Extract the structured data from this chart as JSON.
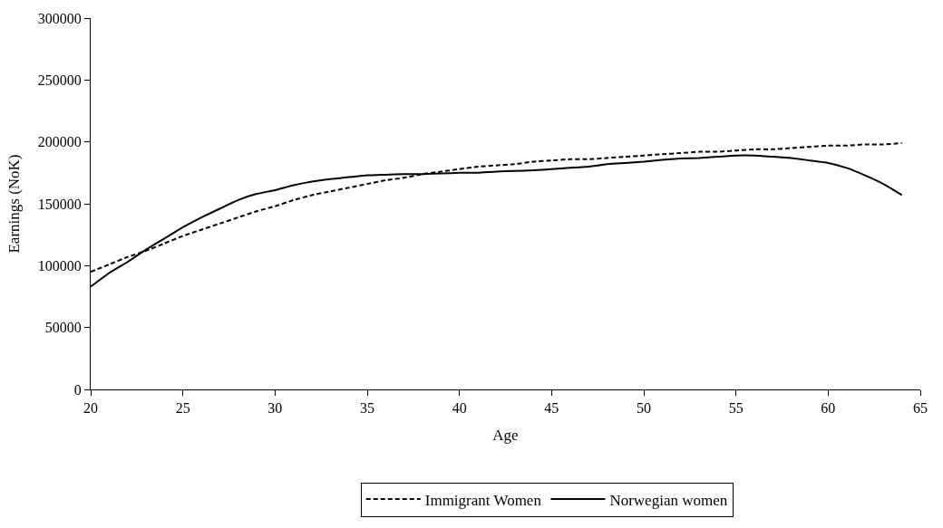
{
  "chart_data": {
    "type": "line",
    "xlabel": "Age",
    "ylabel": "Earnings (NoK)",
    "x": [
      20,
      21,
      22,
      23,
      24,
      25,
      26,
      27,
      28,
      29,
      30,
      31,
      32,
      33,
      34,
      35,
      36,
      37,
      38,
      39,
      40,
      41,
      42,
      43,
      44,
      45,
      46,
      47,
      48,
      49,
      50,
      51,
      52,
      53,
      54,
      55,
      56,
      57,
      58,
      59,
      60,
      61,
      62,
      63,
      64
    ],
    "series": [
      {
        "name": "Immigrant Women",
        "color": "#000000",
        "line_style": "dashed",
        "values": [
          95000,
          101000,
          107000,
          112000,
          118000,
          124000,
          129000,
          134000,
          139000,
          144000,
          148000,
          153000,
          157000,
          160000,
          163000,
          166000,
          169000,
          171000,
          174000,
          176000,
          178000,
          180000,
          181000,
          182000,
          184000,
          185000,
          186000,
          186000,
          187000,
          188000,
          189000,
          190000,
          191000,
          192000,
          192000,
          193000,
          194000,
          194000,
          195000,
          196000,
          197000,
          197000,
          198000,
          198000,
          199000
        ]
      },
      {
        "name": "Norwegian women",
        "color": "#000000",
        "line_style": "solid",
        "values": [
          83000,
          94000,
          103000,
          113000,
          122000,
          131000,
          139000,
          146000,
          153000,
          158000,
          161000,
          165000,
          168000,
          170000,
          171500,
          173000,
          173500,
          174000,
          174000,
          174500,
          175000,
          175000,
          176000,
          176500,
          177000,
          178000,
          179000,
          180000,
          182000,
          183000,
          184000,
          185500,
          186500,
          187000,
          188000,
          189000,
          189000,
          188000,
          187000,
          185000,
          183000,
          179000,
          173000,
          166000,
          157000
        ]
      }
    ],
    "xlim": [
      20,
      65
    ],
    "xticks": [
      20,
      25,
      30,
      35,
      40,
      45,
      50,
      55,
      60,
      65
    ],
    "ylim": [
      0,
      300000
    ],
    "yticks": [
      0,
      50000,
      100000,
      150000,
      200000,
      250000,
      300000
    ],
    "grid": false,
    "legend": "bottom",
    "marker": "none"
  }
}
